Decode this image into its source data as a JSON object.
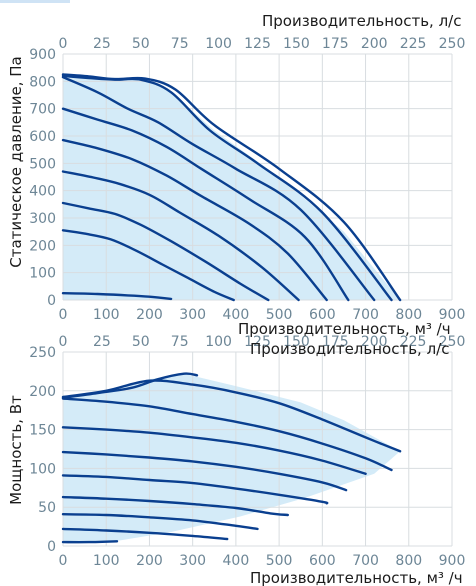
{
  "chart_data": [
    {
      "type": "line",
      "xlabel_bottom": "Производительность, м³ /ч",
      "xlabel_top": "Производительность, л/с",
      "ylabel": "Статическое давление, Па",
      "x_ticks": [
        "0",
        "100",
        "200",
        "300",
        "400",
        "500",
        "600",
        "700",
        "800",
        "900"
      ],
      "x2_ticks": [
        "0",
        "25",
        "50",
        "75",
        "100",
        "125",
        "150",
        "175",
        "200",
        "225",
        "250"
      ],
      "y_ticks": [
        "0",
        "100",
        "200",
        "300",
        "400",
        "500",
        "600",
        "700",
        "800",
        "900"
      ],
      "xlim": [
        0,
        900
      ],
      "ylim": [
        0,
        900
      ],
      "grid": true,
      "envelope": [
        [
          0,
          825
        ],
        [
          100,
          815
        ],
        [
          190,
          808
        ],
        [
          250,
          760
        ],
        [
          350,
          620
        ],
        [
          500,
          450
        ],
        [
          650,
          250
        ],
        [
          780,
          0
        ],
        [
          0,
          0
        ]
      ],
      "series": [
        {
          "values": [
            [
              0,
              825
            ],
            [
              60,
              818
            ],
            [
              120,
              808
            ],
            [
              190,
              810
            ],
            [
              260,
              770
            ],
            [
              350,
              640
            ],
            [
              500,
              480
            ],
            [
              650,
              285
            ],
            [
              780,
              0
            ]
          ]
        },
        {
          "values": [
            [
              0,
              820
            ],
            [
              60,
              812
            ],
            [
              120,
              806
            ],
            [
              180,
              806
            ],
            [
              250,
              760
            ],
            [
              340,
              620
            ],
            [
              450,
              500
            ],
            [
              600,
              320
            ],
            [
              760,
              0
            ]
          ]
        },
        {
          "values": [
            [
              0,
              815
            ],
            [
              80,
              760
            ],
            [
              150,
              700
            ],
            [
              220,
              650
            ],
            [
              300,
              570
            ],
            [
              400,
              480
            ],
            [
              550,
              330
            ],
            [
              720,
              0
            ]
          ]
        },
        {
          "values": [
            [
              0,
              700
            ],
            [
              80,
              660
            ],
            [
              160,
              620
            ],
            [
              240,
              560
            ],
            [
              320,
              480
            ],
            [
              430,
              370
            ],
            [
              560,
              230
            ],
            [
              660,
              0
            ]
          ]
        },
        {
          "values": [
            [
              0,
              585
            ],
            [
              80,
              555
            ],
            [
              160,
              515
            ],
            [
              240,
              455
            ],
            [
              320,
              380
            ],
            [
              430,
              280
            ],
            [
              520,
              170
            ],
            [
              610,
              0
            ]
          ]
        },
        {
          "values": [
            [
              0,
              470
            ],
            [
              70,
              448
            ],
            [
              130,
              425
            ],
            [
              200,
              385
            ],
            [
              270,
              320
            ],
            [
              360,
              235
            ],
            [
              460,
              120
            ],
            [
              545,
              0
            ]
          ]
        },
        {
          "values": [
            [
              0,
              355
            ],
            [
              60,
              335
            ],
            [
              120,
              315
            ],
            [
              180,
              275
            ],
            [
              250,
              215
            ],
            [
              330,
              140
            ],
            [
              410,
              60
            ],
            [
              475,
              0
            ]
          ]
        },
        {
          "values": [
            [
              0,
              255
            ],
            [
              50,
              243
            ],
            [
              110,
              222
            ],
            [
              170,
              180
            ],
            [
              230,
              130
            ],
            [
              290,
              80
            ],
            [
              350,
              30
            ],
            [
              395,
              0
            ]
          ]
        },
        {
          "values": [
            [
              0,
              25
            ],
            [
              80,
              22
            ],
            [
              150,
              17
            ],
            [
              200,
              12
            ],
            [
              250,
              4
            ]
          ]
        }
      ]
    },
    {
      "type": "line",
      "xlabel_bottom": "Производительность, м³ /ч",
      "xlabel_top": "Производительность, л/с",
      "ylabel": "Мощность, Вт",
      "x_ticks": [
        "0",
        "100",
        "200",
        "300",
        "400",
        "500",
        "600",
        "700",
        "800",
        "900"
      ],
      "x2_ticks": [
        "0",
        "25",
        "50",
        "75",
        "100",
        "125",
        "150",
        "175",
        "200",
        "225",
        "250"
      ],
      "y_ticks": [
        "0",
        "50",
        "100",
        "150",
        "200",
        "250"
      ],
      "xlim": [
        0,
        900
      ],
      "ylim": [
        0,
        250
      ],
      "grid": true,
      "envelope": [
        [
          0,
          191
        ],
        [
          100,
          200
        ],
        [
          200,
          215
        ],
        [
          280,
          222
        ],
        [
          400,
          206
        ],
        [
          550,
          185
        ],
        [
          650,
          162
        ],
        [
          780,
          122
        ],
        [
          720,
          93
        ],
        [
          560,
          62
        ],
        [
          410,
          38
        ],
        [
          250,
          18
        ],
        [
          120,
          6
        ],
        [
          0,
          5
        ]
      ],
      "series": [
        {
          "values": [
            [
              0,
              191
            ],
            [
              80,
              197
            ],
            [
              160,
              204
            ],
            [
              220,
              215
            ],
            [
              280,
              222
            ],
            [
              310,
              220
            ]
          ]
        },
        {
          "values": [
            [
              0,
              192
            ],
            [
              100,
              200
            ],
            [
              200,
              213
            ],
            [
              300,
              208
            ],
            [
              400,
              198
            ],
            [
              500,
              184
            ],
            [
              600,
              163
            ],
            [
              700,
              140
            ],
            [
              780,
              122
            ]
          ]
        },
        {
          "values": [
            [
              0,
              190
            ],
            [
              100,
              186
            ],
            [
              200,
              180
            ],
            [
              300,
              170
            ],
            [
              400,
              160
            ],
            [
              500,
              148
            ],
            [
              600,
              132
            ],
            [
              700,
              113
            ],
            [
              760,
              98
            ]
          ]
        },
        {
          "values": [
            [
              0,
              153
            ],
            [
              100,
              150
            ],
            [
              200,
              146
            ],
            [
              300,
              140
            ],
            [
              400,
              133
            ],
            [
              500,
              123
            ],
            [
              600,
              110
            ],
            [
              700,
              93
            ]
          ]
        },
        {
          "values": [
            [
              0,
              121
            ],
            [
              100,
              118
            ],
            [
              200,
              114
            ],
            [
              300,
              109
            ],
            [
              400,
              102
            ],
            [
              500,
              93
            ],
            [
              600,
              82
            ],
            [
              655,
              72
            ]
          ]
        },
        {
          "values": [
            [
              0,
              91
            ],
            [
              100,
              89
            ],
            [
              200,
              85
            ],
            [
              300,
              81
            ],
            [
              400,
              74
            ],
            [
              500,
              66
            ],
            [
              600,
              57
            ],
            [
              610,
              55
            ]
          ]
        },
        {
          "values": [
            [
              0,
              63
            ],
            [
              100,
              61
            ],
            [
              200,
              58
            ],
            [
              300,
              54
            ],
            [
              400,
              49
            ],
            [
              480,
              42
            ],
            [
              520,
              40
            ]
          ]
        },
        {
          "values": [
            [
              0,
              41
            ],
            [
              100,
              40
            ],
            [
              200,
              37
            ],
            [
              300,
              33
            ],
            [
              400,
              26
            ],
            [
              450,
              22
            ]
          ]
        },
        {
          "values": [
            [
              0,
              22
            ],
            [
              100,
              20
            ],
            [
              200,
              17
            ],
            [
              300,
              13
            ],
            [
              380,
              9
            ]
          ]
        },
        {
          "values": [
            [
              0,
              5
            ],
            [
              60,
              5
            ],
            [
              125,
              6
            ]
          ]
        }
      ]
    }
  ]
}
